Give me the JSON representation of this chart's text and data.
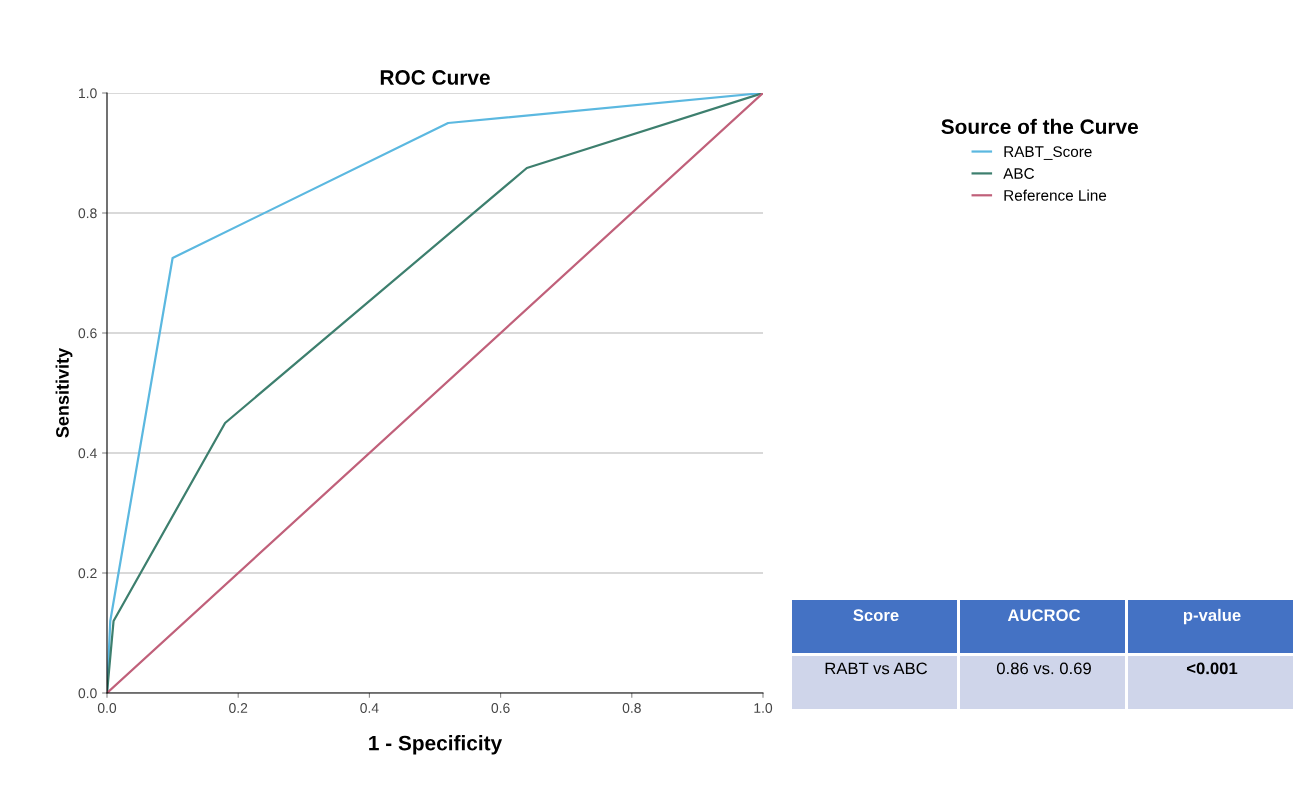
{
  "chart_data": {
    "type": "line",
    "title": "ROC Curve",
    "xlabel": "1 - Specificity",
    "ylabel": "Sensitivity",
    "legend_title": "Source of the Curve",
    "legend": "top right",
    "grid": "y",
    "marker": "none",
    "line_style": "solid",
    "xlim": [
      0,
      1
    ],
    "ylim": [
      0,
      1
    ],
    "xticks": [
      {
        "value": 0,
        "label": "0.0"
      },
      {
        "value": 0.2,
        "label": "0.2"
      },
      {
        "value": 0.4,
        "label": "0.4"
      },
      {
        "value": 0.6,
        "label": "0.6"
      },
      {
        "value": 0.8,
        "label": "0.8"
      },
      {
        "value": 1,
        "label": "1.0"
      }
    ],
    "yticks": [
      {
        "value": 0,
        "label": "0.0"
      },
      {
        "value": 0.2,
        "label": "0.2"
      },
      {
        "value": 0.4,
        "label": "0.4"
      },
      {
        "value": 0.6,
        "label": "0.6"
      },
      {
        "value": 0.8,
        "label": "0.8"
      },
      {
        "value": 1,
        "label": "1.0"
      }
    ],
    "series": [
      {
        "name": "RABT_Score",
        "color": "#5bb8e0",
        "x": [
          0,
          0.005,
          0.1,
          0.52,
          1
        ],
        "values": [
          0,
          0.12,
          0.725,
          0.95,
          1
        ]
      },
      {
        "name": "ABC",
        "color": "#3d7f6e",
        "x": [
          0,
          0.01,
          0.18,
          0.64,
          1
        ],
        "values": [
          0,
          0.12,
          0.45,
          0.875,
          1
        ]
      },
      {
        "name": "Reference Line",
        "color": "#c0607a",
        "x": [
          0,
          1
        ],
        "values": [
          0,
          1
        ]
      }
    ],
    "annotations": [
      "Score",
      "AUCROC",
      "p-value",
      "RABT vs ABC",
      "0.86 vs. 0.69",
      "<0.001"
    ]
  }
}
